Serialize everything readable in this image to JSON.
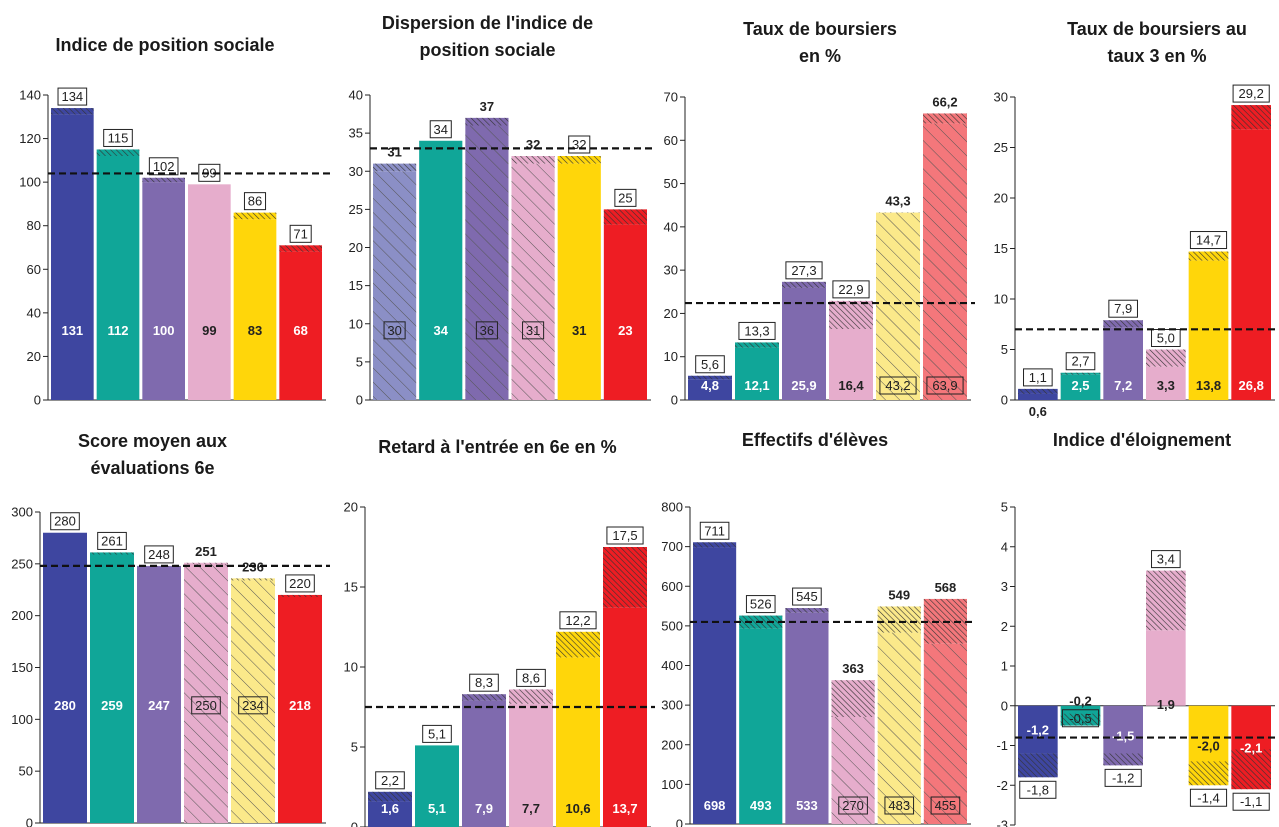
{
  "palette": {
    "blue": "#3e46a0",
    "blue_light": "#8b8fc6",
    "teal": "#10a698",
    "purple": "#7f6aae",
    "pink": "#e6adcc",
    "yellow": "#ffd60a",
    "yellow_light": "#fbe98a",
    "red": "#ee1d23",
    "red_light": "#f4777b",
    "axis": "#222222",
    "reference_line": "#111111"
  },
  "chart_data": [
    {
      "type": "bar",
      "title": "Indice de position sociale",
      "ylim": [
        0,
        140
      ],
      "yticks": [
        0,
        20,
        40,
        60,
        80,
        100,
        120,
        140
      ],
      "reference": 104,
      "bars": [
        {
          "value": 131,
          "label": "131",
          "top": 134,
          "top_label": "134",
          "color": "blue",
          "light": false,
          "boxed_value": false,
          "boxed_top": true
        },
        {
          "value": 112,
          "label": "112",
          "top": 115,
          "top_label": "115",
          "color": "teal",
          "light": false,
          "boxed_value": false,
          "boxed_top": true
        },
        {
          "value": 100,
          "label": "100",
          "top": 102,
          "top_label": "102",
          "color": "purple",
          "light": false,
          "boxed_value": false,
          "boxed_top": true
        },
        {
          "value": 99,
          "label": "99",
          "top": 99,
          "top_label": "99",
          "color": "pink",
          "light": false,
          "boxed_value": false,
          "boxed_top": true
        },
        {
          "value": 83,
          "label": "83",
          "top": 86,
          "top_label": "86",
          "color": "yellow",
          "light": false,
          "boxed_value": false,
          "boxed_top": true
        },
        {
          "value": 68,
          "label": "68",
          "top": 71,
          "top_label": "71",
          "color": "red",
          "light": false,
          "boxed_value": false,
          "boxed_top": true
        }
      ]
    },
    {
      "type": "bar",
      "title": "Dispersion de l'indice de position sociale",
      "ylim": [
        0,
        40
      ],
      "yticks": [
        0,
        5,
        10,
        15,
        20,
        25,
        30,
        35,
        40
      ],
      "reference": 33,
      "bars": [
        {
          "value": 30,
          "label": "30",
          "top": 31,
          "top_label": "31",
          "color": "blue",
          "light": true,
          "boxed_value": true,
          "boxed_top": false
        },
        {
          "value": 34,
          "label": "34",
          "top": 34,
          "top_label": "34",
          "color": "teal",
          "light": false,
          "boxed_value": false,
          "boxed_top": true
        },
        {
          "value": 36,
          "label": "36",
          "top": 37,
          "top_label": "37",
          "color": "purple",
          "light": true,
          "boxed_value": true,
          "boxed_top": false
        },
        {
          "value": 31,
          "label": "31",
          "top": 32,
          "top_label": "32",
          "color": "pink",
          "light": true,
          "boxed_value": true,
          "boxed_top": false
        },
        {
          "value": 31,
          "label": "31",
          "top": 32,
          "top_label": "32",
          "color": "yellow",
          "light": false,
          "boxed_value": false,
          "boxed_top": true
        },
        {
          "value": 23,
          "label": "23",
          "top": 25,
          "top_label": "25",
          "color": "red",
          "light": false,
          "boxed_value": false,
          "boxed_top": true
        }
      ]
    },
    {
      "type": "bar",
      "title": "Taux de boursiers en %",
      "ylim": [
        0,
        70
      ],
      "yticks": [
        0,
        10,
        20,
        30,
        40,
        50,
        60,
        70
      ],
      "reference": 22.4,
      "bars": [
        {
          "value": 4.8,
          "label": "4,8",
          "top": 5.6,
          "top_label": "5,6",
          "color": "blue",
          "light": false,
          "boxed_value": false,
          "boxed_top": true
        },
        {
          "value": 12.1,
          "label": "12,1",
          "top": 13.3,
          "top_label": "13,3",
          "color": "teal",
          "light": false,
          "boxed_value": false,
          "boxed_top": true
        },
        {
          "value": 25.9,
          "label": "25,9",
          "top": 27.3,
          "top_label": "27,3",
          "color": "purple",
          "light": false,
          "boxed_value": false,
          "boxed_top": true
        },
        {
          "value": 16.4,
          "label": "16,4",
          "top": 22.9,
          "top_label": "22,9",
          "color": "pink",
          "light": false,
          "boxed_value": false,
          "boxed_top": true
        },
        {
          "value": 43.2,
          "label": "43,2",
          "top": 43.3,
          "top_label": "43,3",
          "color": "yellow",
          "light": true,
          "boxed_value": true,
          "boxed_top": false
        },
        {
          "value": 63.9,
          "label": "63,9",
          "top": 66.2,
          "top_label": "66,2",
          "color": "red",
          "light": true,
          "boxed_value": true,
          "boxed_top": false
        }
      ]
    },
    {
      "type": "bar",
      "title": "Taux de boursiers au taux 3 en %",
      "ylim": [
        0,
        30
      ],
      "yticks": [
        0,
        5,
        10,
        15,
        20,
        25,
        30
      ],
      "reference": 7.0,
      "bars": [
        {
          "value": 0.6,
          "label": "0,6",
          "top": 1.1,
          "top_label": "1,1",
          "color": "blue",
          "light": false,
          "boxed_value": false,
          "boxed_top": true,
          "label_below": true
        },
        {
          "value": 2.5,
          "label": "2,5",
          "top": 2.7,
          "top_label": "2,7",
          "color": "teal",
          "light": false,
          "boxed_value": false,
          "boxed_top": true
        },
        {
          "value": 7.2,
          "label": "7,2",
          "top": 7.9,
          "top_label": "7,9",
          "color": "purple",
          "light": false,
          "boxed_value": false,
          "boxed_top": true
        },
        {
          "value": 3.3,
          "label": "3,3",
          "top": 5.0,
          "top_label": "5,0",
          "color": "pink",
          "light": false,
          "boxed_value": false,
          "boxed_top": true
        },
        {
          "value": 13.8,
          "label": "13,8",
          "top": 14.7,
          "top_label": "14,7",
          "color": "yellow",
          "light": false,
          "boxed_value": false,
          "boxed_top": true
        },
        {
          "value": 26.8,
          "label": "26,8",
          "top": 29.2,
          "top_label": "29,2",
          "color": "red",
          "light": false,
          "boxed_value": false,
          "boxed_top": true
        }
      ]
    },
    {
      "type": "bar",
      "title": "Score moyen aux évaluations 6e",
      "ylim": [
        0,
        300
      ],
      "yticks": [
        0,
        50,
        100,
        150,
        200,
        250,
        300
      ],
      "reference": 248,
      "bars": [
        {
          "value": 280,
          "label": "280",
          "top": 280,
          "top_label": "280",
          "color": "blue",
          "light": false,
          "boxed_value": false,
          "boxed_top": true
        },
        {
          "value": 259,
          "label": "259",
          "top": 261,
          "top_label": "261",
          "color": "teal",
          "light": false,
          "boxed_value": false,
          "boxed_top": true
        },
        {
          "value": 247,
          "label": "247",
          "top": 248,
          "top_label": "248",
          "color": "purple",
          "light": false,
          "boxed_value": false,
          "boxed_top": true
        },
        {
          "value": 250,
          "label": "250",
          "top": 251,
          "top_label": "251",
          "color": "pink",
          "light": true,
          "boxed_value": true,
          "boxed_top": false
        },
        {
          "value": 234,
          "label": "234",
          "top": 236,
          "top_label": "236",
          "color": "yellow",
          "light": true,
          "boxed_value": true,
          "boxed_top": false
        },
        {
          "value": 218,
          "label": "218",
          "top": 220,
          "top_label": "220",
          "color": "red",
          "light": false,
          "boxed_value": false,
          "boxed_top": true
        }
      ]
    },
    {
      "type": "bar",
      "title": "Retard à l'entrée en 6e en %",
      "ylim": [
        0,
        20
      ],
      "yticks": [
        0,
        5,
        10,
        15,
        20
      ],
      "reference": 7.5,
      "bars": [
        {
          "value": 1.6,
          "label": "1,6",
          "top": 2.2,
          "top_label": "2,2",
          "color": "blue",
          "light": false,
          "boxed_value": false,
          "boxed_top": true
        },
        {
          "value": 5.1,
          "label": "5,1",
          "top": 5.1,
          "top_label": "5,1",
          "color": "teal",
          "light": false,
          "boxed_value": false,
          "boxed_top": true
        },
        {
          "value": 7.9,
          "label": "7,9",
          "top": 8.3,
          "top_label": "8,3",
          "color": "purple",
          "light": false,
          "boxed_value": false,
          "boxed_top": true
        },
        {
          "value": 7.7,
          "label": "7,7",
          "top": 8.6,
          "top_label": "8,6",
          "color": "pink",
          "light": false,
          "boxed_value": false,
          "boxed_top": true
        },
        {
          "value": 10.6,
          "label": "10,6",
          "top": 12.2,
          "top_label": "12,2",
          "color": "yellow",
          "light": false,
          "boxed_value": false,
          "boxed_top": true
        },
        {
          "value": 13.7,
          "label": "13,7",
          "top": 17.5,
          "top_label": "17,5",
          "color": "red",
          "light": false,
          "boxed_value": false,
          "boxed_top": true
        }
      ]
    },
    {
      "type": "bar",
      "title": "Effectifs d'élèves",
      "ylim": [
        0,
        800
      ],
      "yticks": [
        0,
        100,
        200,
        300,
        400,
        500,
        600,
        700,
        800
      ],
      "reference": 510,
      "bars": [
        {
          "value": 698,
          "label": "698",
          "top": 711,
          "top_label": "711",
          "color": "blue",
          "light": false,
          "boxed_value": false,
          "boxed_top": true
        },
        {
          "value": 493,
          "label": "493",
          "top": 526,
          "top_label": "526",
          "color": "teal",
          "light": false,
          "boxed_value": false,
          "boxed_top": true
        },
        {
          "value": 533,
          "label": "533",
          "top": 545,
          "top_label": "545",
          "color": "purple",
          "light": false,
          "boxed_value": false,
          "boxed_top": true
        },
        {
          "value": 270,
          "label": "270",
          "top": 363,
          "top_label": "363",
          "color": "pink",
          "light": true,
          "boxed_value": true,
          "boxed_top": false
        },
        {
          "value": 483,
          "label": "483",
          "top": 549,
          "top_label": "549",
          "color": "yellow",
          "light": true,
          "boxed_value": true,
          "boxed_top": false
        },
        {
          "value": 455,
          "label": "455",
          "top": 568,
          "top_label": "568",
          "color": "red",
          "light": true,
          "boxed_value": true,
          "boxed_top": false
        }
      ]
    },
    {
      "type": "bar",
      "title": "Indice d'éloignement",
      "ylim": [
        -3,
        5
      ],
      "yticks": [
        -3,
        -2,
        -1,
        0,
        1,
        2,
        3,
        4,
        5
      ],
      "reference": -0.8,
      "bars": [
        {
          "value": -1.2,
          "label": "-1,2",
          "top": -1.8,
          "top_label": "-1,8",
          "color": "blue",
          "light": false,
          "boxed_value": false,
          "boxed_top": true
        },
        {
          "value": -0.5,
          "label": "-0,5",
          "top": -0.2,
          "top_label": "-0,2",
          "color": "teal",
          "light": false,
          "boxed_value": true,
          "boxed_top": false
        },
        {
          "value": -1.5,
          "label": "-1,5",
          "top": -1.2,
          "top_label": "-1,2",
          "color": "purple",
          "light": false,
          "boxed_value": false,
          "boxed_top": true
        },
        {
          "value": 1.9,
          "label": "1,9",
          "top": 3.4,
          "top_label": "3,4",
          "color": "pink",
          "light": false,
          "boxed_value": false,
          "boxed_top": true
        },
        {
          "value": -2.0,
          "label": "-2,0",
          "top": -1.4,
          "top_label": "-1,4",
          "color": "yellow",
          "light": false,
          "boxed_value": false,
          "boxed_top": true
        },
        {
          "value": -2.1,
          "label": "-2,1",
          "top": -1.1,
          "top_label": "-1,1",
          "color": "red",
          "light": false,
          "boxed_value": false,
          "boxed_top": true
        }
      ]
    }
  ]
}
